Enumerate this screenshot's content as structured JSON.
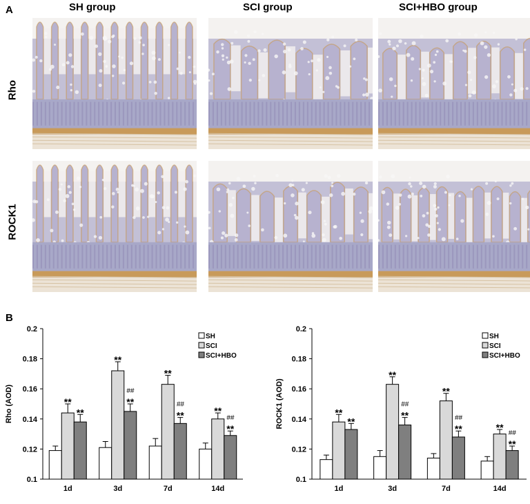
{
  "figure": {
    "panel_a_label": "A",
    "panel_b_label": "B",
    "columns": [
      "SH  group",
      "SCI  group",
      "SCI+HBO  group"
    ],
    "rows": [
      "Rho",
      "ROCK1"
    ],
    "colors": {
      "tissue_blue": "#a8a8c8",
      "tissue_brown": "#c89a5a",
      "bar_sh": "#ffffff",
      "bar_sci": "#d9d9d9",
      "bar_hbo": "#7f7f7f"
    }
  },
  "chart_data": [
    {
      "type": "bar",
      "ylabel": "Rho (AOD)",
      "ylim": [
        0.1,
        0.2
      ],
      "yticks": [
        "0.1",
        "0.12",
        "0.14",
        "0.16",
        "0.18",
        "0.2"
      ],
      "categories": [
        "1d",
        "3d",
        "7d",
        "14d"
      ],
      "legend_position": "top-right",
      "series": [
        {
          "name": "SH",
          "values": [
            0.119,
            0.121,
            0.122,
            0.12
          ],
          "errors": [
            0.003,
            0.004,
            0.005,
            0.004
          ],
          "labels": [
            "",
            "",
            "",
            ""
          ]
        },
        {
          "name": "SCI",
          "values": [
            0.144,
            0.172,
            0.163,
            0.14
          ],
          "errors": [
            0.006,
            0.006,
            0.006,
            0.004
          ],
          "labels": [
            "**",
            "**",
            "**",
            "**"
          ]
        },
        {
          "name": "SCI+HBO",
          "values": [
            0.138,
            0.145,
            0.137,
            0.129
          ],
          "errors": [
            0.005,
            0.005,
            0.004,
            0.003
          ],
          "labels": [
            "**",
            "##\n**",
            "##\n**",
            "##\n**"
          ]
        }
      ]
    },
    {
      "type": "bar",
      "ylabel": "ROCK1 (AOD)",
      "ylim": [
        0.1,
        0.2
      ],
      "yticks": [
        "0.1",
        "0.12",
        "0.14",
        "0.16",
        "0.18",
        "0.2"
      ],
      "categories": [
        "1d",
        "3d",
        "7d",
        "14d"
      ],
      "legend_position": "top-right",
      "series": [
        {
          "name": "SH",
          "values": [
            0.113,
            0.115,
            0.114,
            0.112
          ],
          "errors": [
            0.003,
            0.004,
            0.003,
            0.003
          ],
          "labels": [
            "",
            "",
            "",
            ""
          ]
        },
        {
          "name": "SCI",
          "values": [
            0.138,
            0.163,
            0.152,
            0.13
          ],
          "errors": [
            0.005,
            0.005,
            0.005,
            0.003
          ],
          "labels": [
            "**",
            "**",
            "**",
            "**"
          ]
        },
        {
          "name": "SCI+HBO",
          "values": [
            0.133,
            0.136,
            0.128,
            0.119
          ],
          "errors": [
            0.004,
            0.005,
            0.004,
            0.003
          ],
          "labels": [
            "**",
            "##\n**",
            "##\n**",
            "##\n**"
          ]
        }
      ]
    }
  ]
}
